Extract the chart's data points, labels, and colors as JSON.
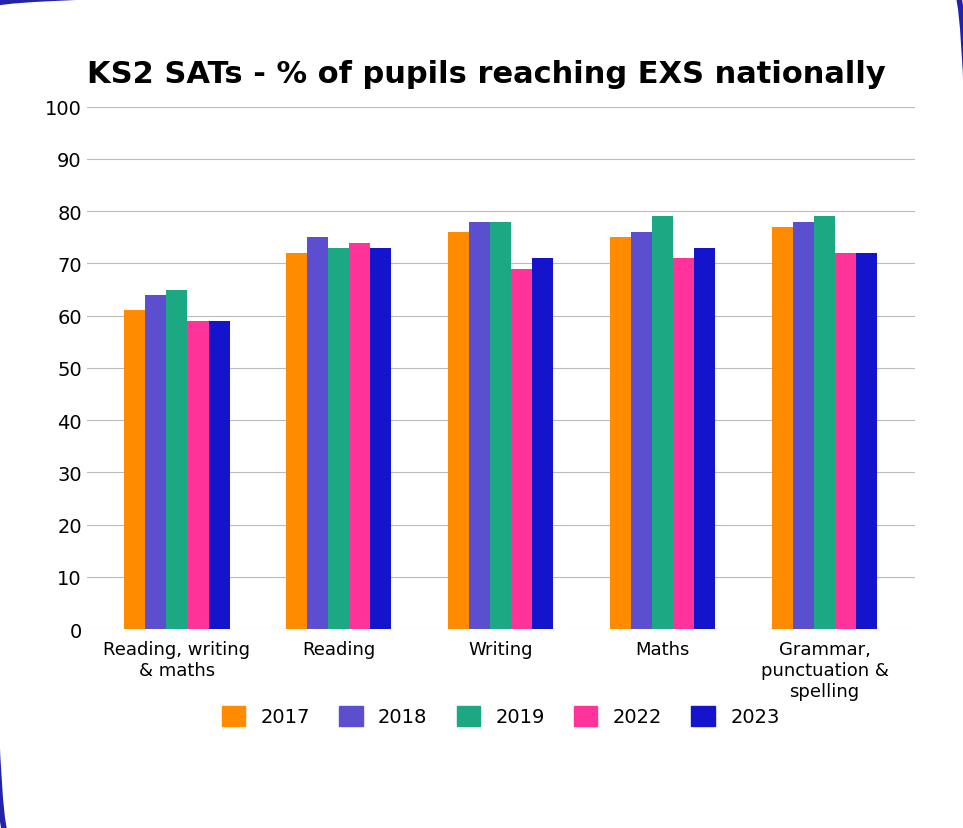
{
  "title": "KS2 SATs - % of pupils reaching EXS nationally",
  "categories": [
    "Reading, writing\n& maths",
    "Reading",
    "Writing",
    "Maths",
    "Grammar,\npunctuation &\nspelling"
  ],
  "years": [
    "2017",
    "2018",
    "2019",
    "2022",
    "2023"
  ],
  "values": {
    "2017": [
      61,
      72,
      76,
      75,
      77
    ],
    "2018": [
      64,
      75,
      78,
      76,
      78
    ],
    "2019": [
      65,
      73,
      78,
      79,
      79
    ],
    "2022": [
      59,
      74,
      69,
      71,
      72
    ],
    "2023": [
      59,
      73,
      71,
      73,
      72
    ]
  },
  "colors": {
    "2017": "#FF8C00",
    "2018": "#5B4FCF",
    "2019": "#1BA882",
    "2022": "#FF3399",
    "2023": "#1414CC"
  },
  "ylim": [
    0,
    100
  ],
  "yticks": [
    0,
    10,
    20,
    30,
    40,
    50,
    60,
    70,
    80,
    90,
    100
  ],
  "background_color": "#FFFFFF",
  "border_color": "#2222AA",
  "title_fontsize": 22,
  "axis_fontsize": 13,
  "legend_fontsize": 14,
  "tick_fontsize": 14,
  "bar_width": 0.13
}
